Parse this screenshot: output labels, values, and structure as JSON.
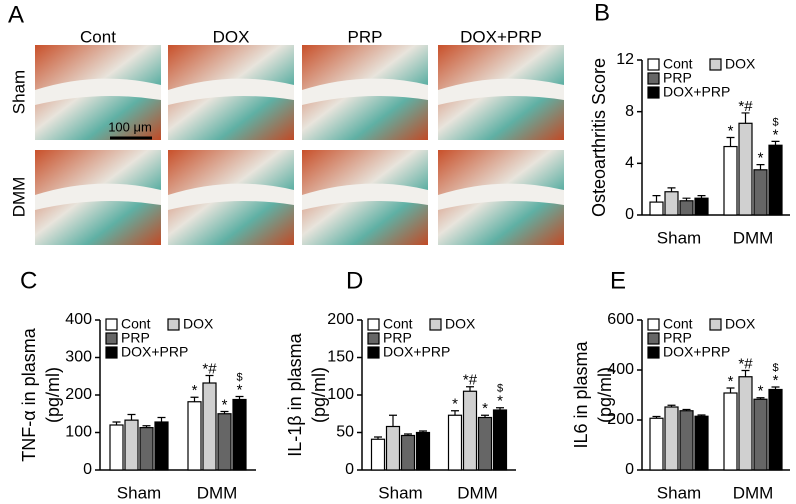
{
  "panel_a": {
    "letter": "A",
    "columns": [
      "Cont",
      "DOX",
      "PRP",
      "DOX+PRP"
    ],
    "rows": [
      "Sham",
      "DMM"
    ],
    "scale_bar": "100 μm"
  },
  "chart_data": [
    {
      "type": "bar",
      "panel": "B",
      "ylabel": [
        "Osteoarthritis Score"
      ],
      "categories": [
        "Sham",
        "DMM"
      ],
      "ylim": [
        0,
        12
      ],
      "yticks": [
        0,
        4,
        8,
        12
      ],
      "series": [
        {
          "name": "Cont",
          "color": "#ffffff",
          "values": [
            1.0,
            5.3
          ],
          "errors": [
            0.5,
            0.7
          ],
          "annotations": [
            null,
            "*"
          ]
        },
        {
          "name": "DOX",
          "color": "#d0d0d0",
          "values": [
            1.8,
            7.1
          ],
          "errors": [
            0.3,
            0.8
          ],
          "annotations": [
            null,
            "*#"
          ]
        },
        {
          "name": "PRP",
          "color": "#666666",
          "values": [
            1.1,
            3.5
          ],
          "errors": [
            0.2,
            0.4
          ],
          "annotations": [
            null,
            "*"
          ]
        },
        {
          "name": "DOX+PRP",
          "color": "#000000",
          "values": [
            1.3,
            5.4
          ],
          "errors": [
            0.2,
            0.3
          ],
          "annotations": [
            null,
            "*"
          ],
          "annotations_top": [
            null,
            "$"
          ]
        }
      ]
    },
    {
      "type": "bar",
      "panel": "C",
      "ylabel": [
        "TNF-α in plasma",
        "(pg/ml)"
      ],
      "categories": [
        "Sham",
        "DMM"
      ],
      "ylim": [
        0,
        400
      ],
      "yticks": [
        0,
        100,
        200,
        300,
        400
      ],
      "series": [
        {
          "name": "Cont",
          "color": "#ffffff",
          "values": [
            120,
            182
          ],
          "errors": [
            8,
            12
          ],
          "annotations": [
            null,
            "*"
          ]
        },
        {
          "name": "DOX",
          "color": "#d0d0d0",
          "values": [
            133,
            232
          ],
          "errors": [
            15,
            20
          ],
          "annotations": [
            null,
            "*#"
          ]
        },
        {
          "name": "PRP",
          "color": "#666666",
          "values": [
            113,
            150
          ],
          "errors": [
            5,
            6
          ],
          "annotations": [
            null,
            "*"
          ]
        },
        {
          "name": "DOX+PRP",
          "color": "#000000",
          "values": [
            128,
            188
          ],
          "errors": [
            12,
            8
          ],
          "annotations": [
            null,
            "*"
          ],
          "annotations_top": [
            null,
            "$"
          ]
        }
      ]
    },
    {
      "type": "bar",
      "panel": "D",
      "ylabel": [
        "IL-1β in plasma",
        "(pg/ml)"
      ],
      "categories": [
        "Sham",
        "DMM"
      ],
      "ylim": [
        0,
        200
      ],
      "yticks": [
        0,
        50,
        100,
        150,
        200
      ],
      "series": [
        {
          "name": "Cont",
          "color": "#ffffff",
          "values": [
            41,
            73
          ],
          "errors": [
            3,
            6
          ],
          "annotations": [
            null,
            "*"
          ]
        },
        {
          "name": "DOX",
          "color": "#d0d0d0",
          "values": [
            58,
            105
          ],
          "errors": [
            15,
            6
          ],
          "annotations": [
            null,
            "*#"
          ]
        },
        {
          "name": "PRP",
          "color": "#666666",
          "values": [
            46,
            70
          ],
          "errors": [
            2,
            3
          ],
          "annotations": [
            null,
            "*"
          ]
        },
        {
          "name": "DOX+PRP",
          "color": "#000000",
          "values": [
            50,
            80
          ],
          "errors": [
            2,
            3
          ],
          "annotations": [
            null,
            "*"
          ],
          "annotations_top": [
            null,
            "$"
          ]
        }
      ]
    },
    {
      "type": "bar",
      "panel": "E",
      "ylabel": [
        "IL6 in plasma",
        "(pg/ml)"
      ],
      "categories": [
        "Sham",
        "DMM"
      ],
      "ylim": [
        0,
        600
      ],
      "yticks": [
        0,
        200,
        400,
        600
      ],
      "series": [
        {
          "name": "Cont",
          "color": "#ffffff",
          "values": [
            207,
            308
          ],
          "errors": [
            7,
            20
          ],
          "annotations": [
            null,
            "*"
          ]
        },
        {
          "name": "DOX",
          "color": "#d0d0d0",
          "values": [
            252,
            373
          ],
          "errors": [
            7,
            25
          ],
          "annotations": [
            null,
            "*#"
          ]
        },
        {
          "name": "PRP",
          "color": "#666666",
          "values": [
            237,
            283
          ],
          "errors": [
            5,
            6
          ],
          "annotations": [
            null,
            "*"
          ]
        },
        {
          "name": "DOX+PRP",
          "color": "#000000",
          "values": [
            215,
            322
          ],
          "errors": [
            5,
            10
          ],
          "annotations": [
            null,
            "*"
          ],
          "annotations_top": [
            null,
            "$"
          ]
        }
      ]
    }
  ]
}
